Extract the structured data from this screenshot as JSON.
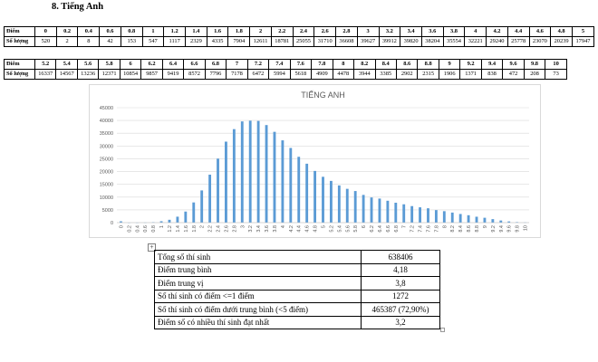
{
  "heading": "8.  Tiếng Anh",
  "score_table_1": {
    "header_label": "Điểm",
    "count_label": "Số lượng",
    "scores": [
      "0",
      "0.2",
      "0.4",
      "0.6",
      "0.8",
      "1",
      "1.2",
      "1.4",
      "1.6",
      "1.8",
      "2",
      "2.2",
      "2.4",
      "2.6",
      "2.8",
      "3",
      "3.2",
      "3.4",
      "3.6",
      "3.8",
      "4",
      "4.2",
      "4.4",
      "4.6",
      "4.8",
      "5"
    ],
    "counts": [
      "520",
      "2",
      "8",
      "42",
      "153",
      "547",
      "1117",
      "2329",
      "4335",
      "7904",
      "12611",
      "18781",
      "25055",
      "31710",
      "36608",
      "39627",
      "39912",
      "39820",
      "38204",
      "35554",
      "32221",
      "29240",
      "25778",
      "23070",
      "20239",
      "17947"
    ]
  },
  "score_table_2": {
    "header_label": "Điểm",
    "count_label": "Số lượng",
    "scores": [
      "5.2",
      "5.4",
      "5.6",
      "5.8",
      "6",
      "6.2",
      "6.4",
      "6.6",
      "6.8",
      "7",
      "7.2",
      "7.4",
      "7.6",
      "7.8",
      "8",
      "8.2",
      "8.4",
      "8.6",
      "8.8",
      "9",
      "9.2",
      "9.4",
      "9.6",
      "9.8",
      "10"
    ],
    "counts": [
      "16337",
      "14567",
      "13236",
      "12371",
      "10854",
      "9857",
      "9419",
      "8572",
      "7796",
      "7178",
      "6472",
      "5994",
      "5618",
      "4909",
      "4478",
      "3944",
      "3385",
      "2902",
      "2315",
      "1906",
      "1371",
      "838",
      "472",
      "208",
      "73"
    ]
  },
  "chart_data": {
    "type": "bar",
    "title": "TIẾNG ANH",
    "categories": [
      "0",
      "0.2",
      "0.4",
      "0.6",
      "0.8",
      "1",
      "1.2",
      "1.4",
      "1.6",
      "1.8",
      "2",
      "2.2",
      "2.4",
      "2.6",
      "2.8",
      "3",
      "3.2",
      "3.4",
      "3.6",
      "3.8",
      "4",
      "4.2",
      "4.4",
      "4.6",
      "4.8",
      "5",
      "5.2",
      "5.4",
      "5.6",
      "5.8",
      "6",
      "6.2",
      "6.4",
      "6.6",
      "6.8",
      "7",
      "7.2",
      "7.4",
      "7.6",
      "7.8",
      "8",
      "8.2",
      "8.4",
      "8.6",
      "8.8",
      "9",
      "9.2",
      "9.4",
      "9.6",
      "9.8",
      "10"
    ],
    "values": [
      520,
      2,
      8,
      42,
      153,
      547,
      1117,
      2329,
      4335,
      7904,
      12611,
      18781,
      25055,
      31710,
      36608,
      39627,
      39912,
      39820,
      38204,
      35554,
      32221,
      29240,
      25778,
      23070,
      20239,
      17947,
      16337,
      14567,
      13236,
      12371,
      10854,
      9857,
      9419,
      8572,
      7796,
      7178,
      6472,
      5994,
      5618,
      4909,
      4478,
      3944,
      3385,
      2902,
      2315,
      1906,
      1371,
      838,
      472,
      208,
      73
    ],
    "ylim": [
      0,
      45000
    ],
    "yticks": [
      "0",
      "5000",
      "10000",
      "15000",
      "20000",
      "25000",
      "30000",
      "35000",
      "40000",
      "45000"
    ],
    "grid": true,
    "bar_color": "#5b9bd5"
  },
  "summary": [
    {
      "label": "Tổng số thí sinh",
      "value": "638406"
    },
    {
      "label": "Điểm trung bình",
      "value": "4,18"
    },
    {
      "label": "Điểm trung vị",
      "value": "3,8"
    },
    {
      "label": "Số thí sinh có điểm <=1 điểm",
      "value": "1272"
    },
    {
      "label": "Số thí sinh có điểm dưới trung bình (<5 điểm)",
      "value": "465387 (72,90%)"
    },
    {
      "label": "Điểm số có nhiều thí sinh đạt nhất",
      "value": "3,2"
    }
  ],
  "table_handle_icon": "move-handle-icon"
}
